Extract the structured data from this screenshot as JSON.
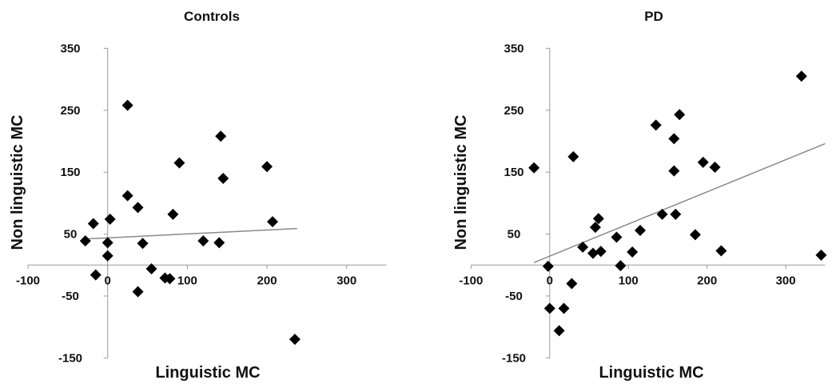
{
  "chart_data": [
    {
      "type": "scatter",
      "title": "Controls",
      "xlabel": "Linguistic MC",
      "ylabel": "Non linguistic MC",
      "xlim": [
        -100,
        350
      ],
      "ylim": [
        -150,
        350
      ],
      "xticks": [
        "-100",
        "0",
        "100",
        "200",
        "300"
      ],
      "yticks": [
        "-150",
        "-50",
        "50",
        "150",
        "250",
        "350"
      ],
      "grid": false,
      "marker": "diamond",
      "trendline": {
        "x": [
          -30,
          238
        ],
        "y": [
          42,
          59
        ]
      },
      "points": {
        "x": [
          25,
          -28,
          -18,
          -15,
          3,
          0,
          0,
          25,
          38,
          44,
          90,
          82,
          142,
          145,
          200,
          207,
          120,
          140,
          55,
          72,
          78,
          38,
          235
        ],
        "y": [
          258,
          39,
          67,
          -16,
          74,
          36,
          15,
          112,
          93,
          35,
          165,
          82,
          208,
          140,
          159,
          70,
          39,
          36,
          -6,
          -21,
          -22,
          -43,
          -120
        ]
      }
    },
    {
      "type": "scatter",
      "title": "PD",
      "xlabel": "Linguistic MC",
      "ylabel": "Non linguistic MC",
      "xlim": [
        -100,
        350
      ],
      "ylim": [
        -150,
        350
      ],
      "xticks": [
        "-100",
        "0",
        "100",
        "200",
        "300"
      ],
      "yticks": [
        "-150",
        "-50",
        "50",
        "150",
        "250",
        "350"
      ],
      "grid": false,
      "marker": "diamond",
      "trendline": {
        "x": [
          -20,
          350
        ],
        "y": [
          4,
          196
        ]
      },
      "points": {
        "x": [
          -20,
          30,
          -2,
          0,
          12,
          18,
          28,
          42,
          55,
          58,
          62,
          65,
          85,
          90,
          105,
          115,
          135,
          143,
          158,
          158,
          160,
          165,
          185,
          195,
          210,
          218,
          320,
          345
        ],
        "y": [
          157,
          175,
          -2,
          -70,
          -106,
          -70,
          -30,
          29,
          19,
          61,
          75,
          22,
          45,
          -1,
          21,
          56,
          226,
          82,
          204,
          152,
          82,
          243,
          49,
          166,
          158,
          23,
          305,
          16
        ]
      }
    }
  ]
}
